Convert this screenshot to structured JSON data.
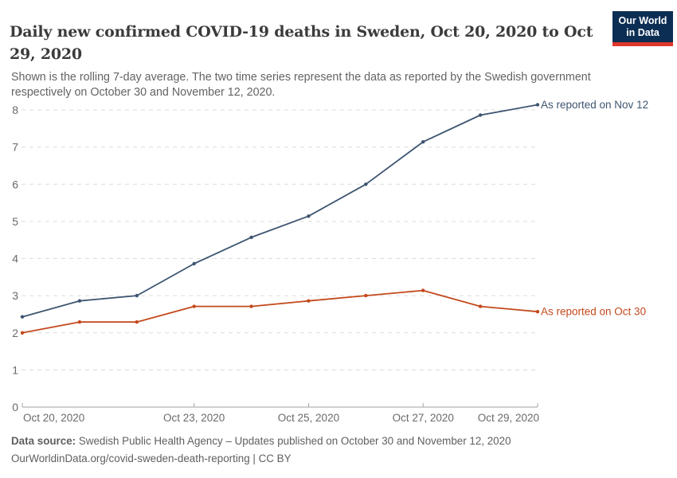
{
  "header": {
    "title": "Daily new confirmed COVID-19 deaths in Sweden, Oct 20, 2020 to Oct\n29, 2020",
    "subtitle": "Shown is the rolling 7-day average. The two time series represent the data as reported by the Swedish government\nrespectively on October 30 and November 12, 2020."
  },
  "logo": {
    "line1": "Our World",
    "line2": "in Data",
    "bg_color": "#0d2e54",
    "bar_color": "#e0362c"
  },
  "footer": {
    "source_label": "Data source:",
    "source_text": " Swedish Public Health Agency – Updates published on October 30 and November 12, 2020",
    "link_line": "OurWorldinData.org/covid-sweden-death-reporting | CC BY"
  },
  "palette": {
    "title": "#3b3b3b",
    "subtitle": "#636363",
    "footer": "#5f5f5f",
    "axis": "#a3a3a3",
    "grid": "#dcdcdc",
    "tick_label": "#6a6a6a"
  },
  "chart_data": {
    "type": "line",
    "title": "Daily new confirmed COVID-19 deaths in Sweden, Oct 20, 2020 to Oct 29, 2020",
    "xlabel": "",
    "ylabel": "",
    "ylim": [
      0,
      8
    ],
    "yticks": [
      0,
      1,
      2,
      3,
      4,
      5,
      6,
      7,
      8
    ],
    "grid": "horizontal-dashed",
    "legend": "end-of-line-labels",
    "x": [
      "Oct 20, 2020",
      "Oct 21, 2020",
      "Oct 22, 2020",
      "Oct 23, 2020",
      "Oct 24, 2020",
      "Oct 25, 2020",
      "Oct 26, 2020",
      "Oct 27, 2020",
      "Oct 28, 2020",
      "Oct 29, 2020"
    ],
    "xticks": [
      {
        "index": 0,
        "label": "Oct 20, 2020"
      },
      {
        "index": 3,
        "label": "Oct 23, 2020"
      },
      {
        "index": 5,
        "label": "Oct 25, 2020"
      },
      {
        "index": 7,
        "label": "Oct 27, 2020"
      },
      {
        "index": 9,
        "label": "Oct 29, 2020"
      }
    ],
    "series": [
      {
        "name": "As reported on Nov 12",
        "color": "#3e5571",
        "values": [
          2.43,
          2.86,
          3,
          3.86,
          4.57,
          5.14,
          6,
          7.14,
          7.86,
          8.14
        ]
      },
      {
        "name": "As reported on Oct 30",
        "color": "#c4491c",
        "values": [
          2,
          2.29,
          2.29,
          2.71,
          2.71,
          2.86,
          3,
          3.14,
          2.71,
          2.57
        ]
      }
    ]
  }
}
